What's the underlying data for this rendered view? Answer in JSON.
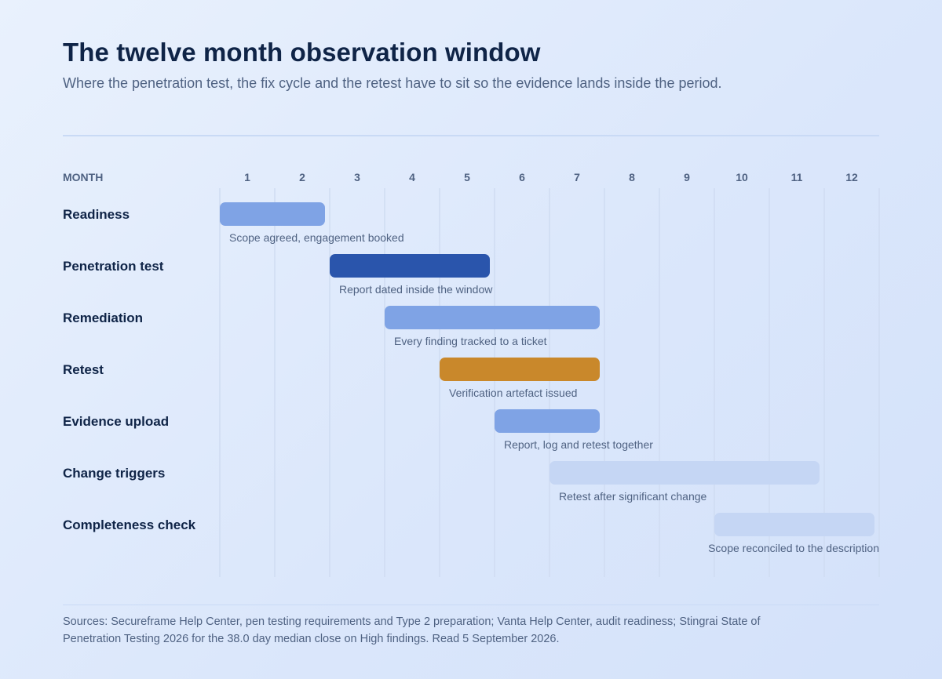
{
  "header": {
    "title": "The twelve month observation window",
    "subtitle": "Where the penetration test, the fix cycle and the retest have to sit so the evidence lands inside the period."
  },
  "chart_data": {
    "type": "gantt",
    "axis_label": "MONTH",
    "months": [
      1,
      2,
      3,
      4,
      5,
      6,
      7,
      8,
      9,
      10,
      11,
      12
    ],
    "grid": true,
    "tasks": [
      {
        "label": "Readiness",
        "start": 1,
        "end": 2,
        "note": "Scope agreed, engagement booked",
        "style": "light",
        "color": "#7fa3e5"
      },
      {
        "label": "Penetration test",
        "start": 3,
        "end": 5,
        "note": "Report dated inside the window",
        "style": "dark",
        "color": "#2a55ac"
      },
      {
        "label": "Remediation",
        "start": 4,
        "end": 7,
        "note": "Every finding tracked to a ticket",
        "style": "light",
        "color": "#7fa3e5"
      },
      {
        "label": "Retest",
        "start": 5,
        "end": 7,
        "note": "Verification artefact issued",
        "style": "accent",
        "color": "#c9882b"
      },
      {
        "label": "Evidence upload",
        "start": 6,
        "end": 7,
        "note": "Report, log and retest together",
        "style": "light",
        "color": "#7fa3e5"
      },
      {
        "label": "Change triggers",
        "start": 7,
        "end": 11,
        "note": "Retest after significant change",
        "style": "faint",
        "color": "#c5d6f4"
      },
      {
        "label": "Completeness check",
        "start": 10,
        "end": 12,
        "note": "Scope reconciled to the description",
        "style": "faint",
        "color": "#c5d6f4"
      }
    ]
  },
  "colors": {
    "gridline": "#cfdcf2",
    "light_bar": "#7fa3e5",
    "dark_bar": "#2a55ac",
    "accent_bar": "#c9882b",
    "faint_bar": "#c5d6f4"
  },
  "footer": {
    "sources": "Sources: Secureframe Help Center, pen testing requirements and Type 2 preparation; Vanta Help Center, audit readiness; Stingrai State of Penetration Testing 2026 for the 38.0 day median close on High findings. Read 5 September 2026."
  }
}
